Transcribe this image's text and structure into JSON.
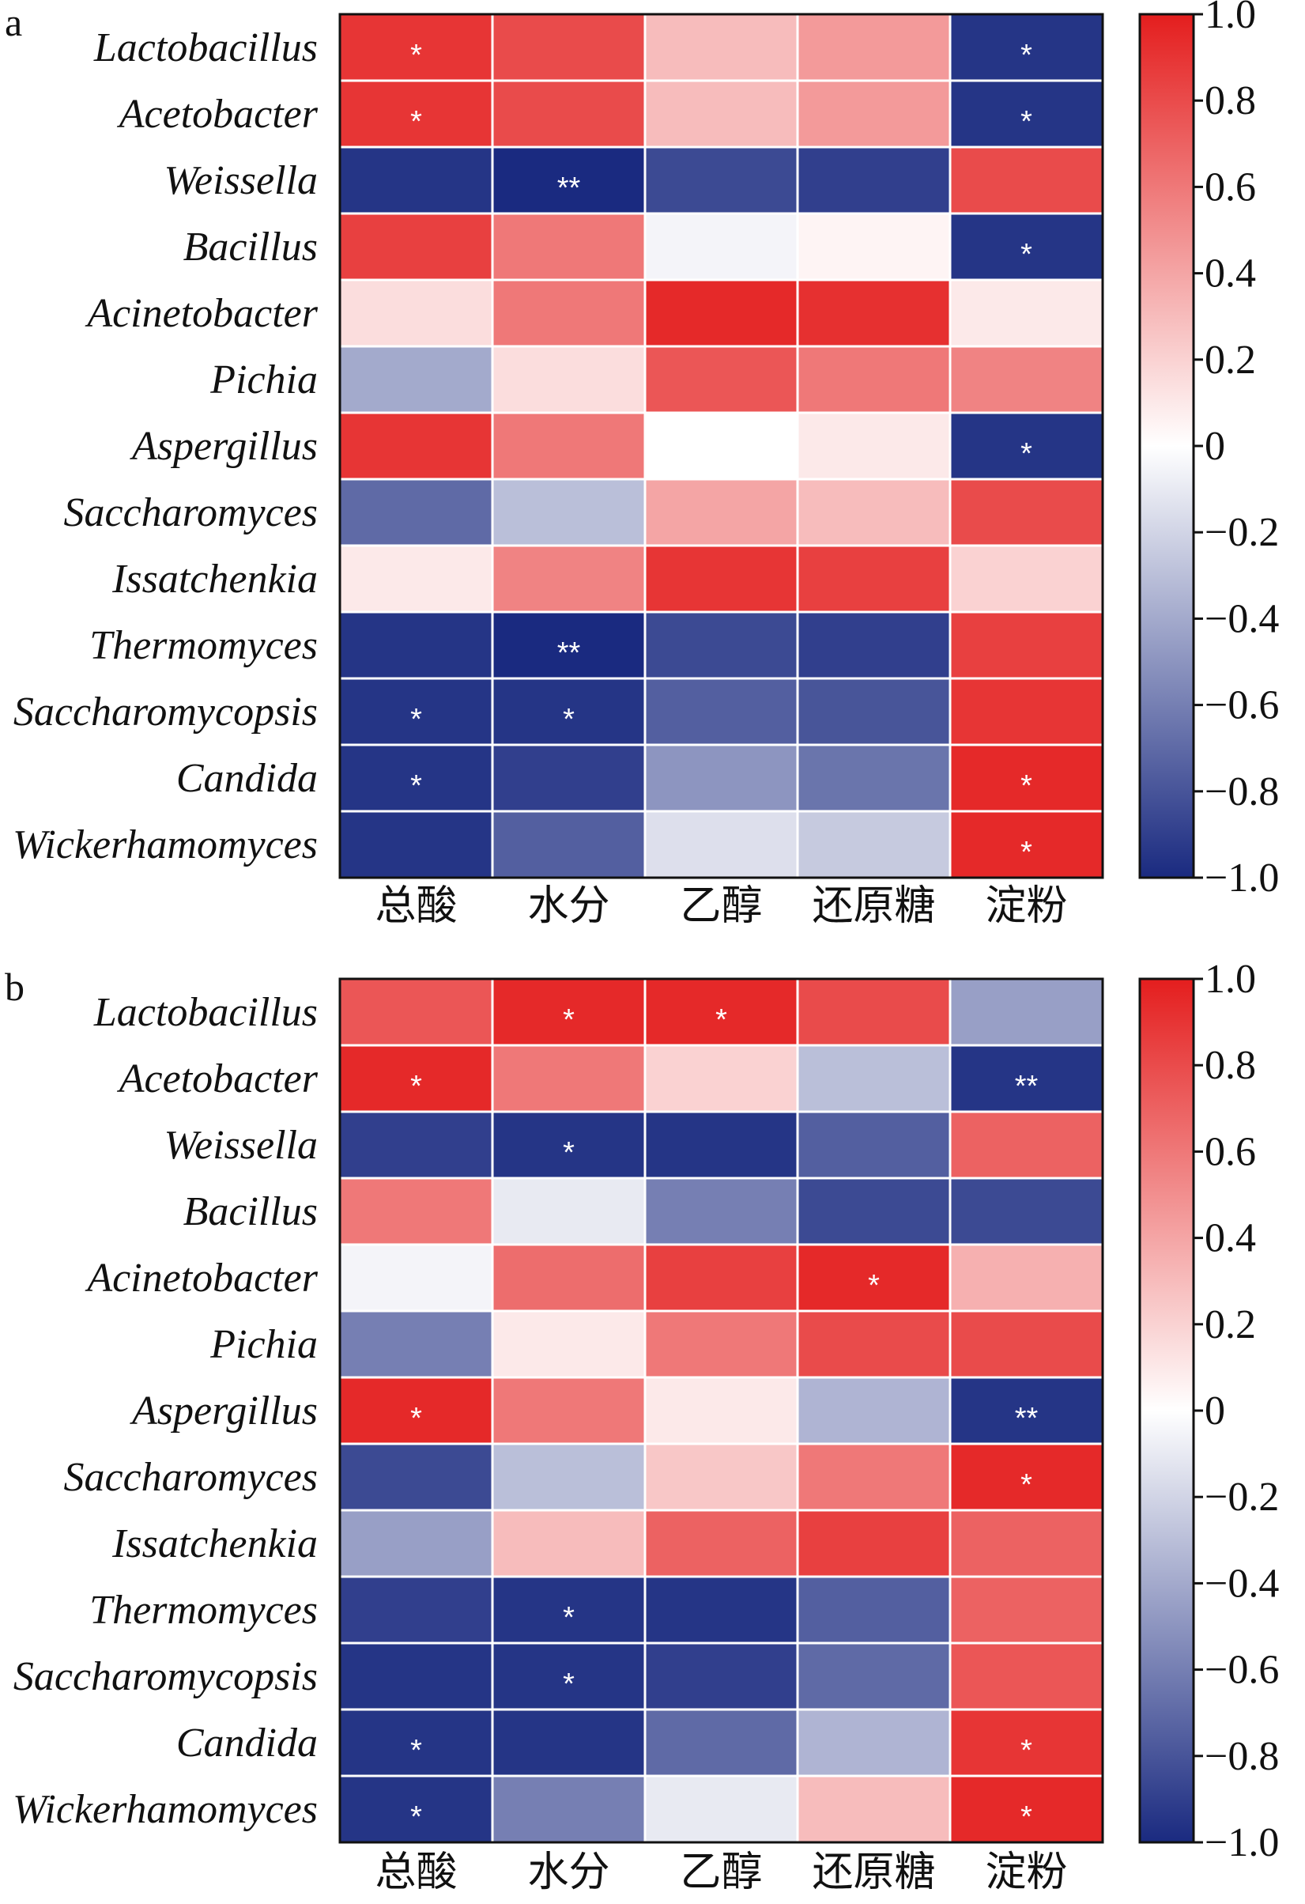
{
  "chart_data": [
    {
      "type": "heatmap",
      "panel_label": "a",
      "rows": [
        "Lactobacillus",
        "Acetobacter",
        "Weissella",
        "Bacillus",
        "Acinetobacter",
        "Pichia",
        "Aspergillus",
        "Saccharomyces",
        "Issatchenkia",
        "Thermomyces",
        "Saccharomycopsis",
        "Candida",
        "Wickerhamomyces"
      ],
      "columns": [
        "总酸",
        "水分",
        "乙醇",
        "还原糖",
        "淀粉"
      ],
      "values": [
        [
          0.9,
          0.8,
          0.3,
          0.45,
          -0.95
        ],
        [
          0.9,
          0.8,
          0.3,
          0.45,
          -0.95
        ],
        [
          -0.95,
          -1.0,
          -0.85,
          -0.9,
          0.8
        ],
        [
          0.85,
          0.6,
          -0.05,
          0.05,
          -0.95
        ],
        [
          0.15,
          0.6,
          0.95,
          0.92,
          0.1
        ],
        [
          -0.4,
          0.15,
          0.75,
          0.6,
          0.55
        ],
        [
          0.9,
          0.6,
          0.0,
          0.1,
          -0.95
        ],
        [
          -0.7,
          -0.3,
          0.4,
          0.3,
          0.8
        ],
        [
          0.1,
          0.55,
          0.9,
          0.85,
          0.2
        ],
        [
          -0.95,
          -1.0,
          -0.85,
          -0.9,
          0.85
        ],
        [
          -0.95,
          -0.95,
          -0.75,
          -0.8,
          0.9
        ],
        [
          -0.95,
          -0.9,
          -0.5,
          -0.65,
          0.95
        ],
        [
          -0.95,
          -0.75,
          -0.15,
          -0.25,
          0.95
        ]
      ],
      "significance": [
        [
          "*",
          "",
          "",
          "",
          "*"
        ],
        [
          "*",
          "",
          "",
          "",
          "*"
        ],
        [
          "",
          "**",
          "",
          "",
          ""
        ],
        [
          "",
          "",
          "",
          "",
          "*"
        ],
        [
          "",
          "",
          "",
          "",
          ""
        ],
        [
          "",
          "",
          "",
          "",
          ""
        ],
        [
          "",
          "",
          "",
          "",
          "*"
        ],
        [
          "",
          "",
          "",
          "",
          ""
        ],
        [
          "",
          "",
          "",
          "",
          ""
        ],
        [
          "",
          "**",
          "",
          "",
          ""
        ],
        [
          "*",
          "*",
          "",
          "",
          ""
        ],
        [
          "*",
          "",
          "",
          "",
          "*"
        ],
        [
          "",
          "",
          "",
          "",
          "*"
        ]
      ],
      "colorbar": {
        "min": -1.0,
        "max": 1.0,
        "ticks": [
          "1.0",
          "0.8",
          "0.6",
          "0.4",
          "0.2",
          "0",
          "−0.2",
          "−0.4",
          "−0.6",
          "−0.8",
          "−1.0"
        ]
      }
    },
    {
      "type": "heatmap",
      "panel_label": "b",
      "rows": [
        "Lactobacillus",
        "Acetobacter",
        "Weissella",
        "Bacillus",
        "Acinetobacter",
        "Pichia",
        "Aspergillus",
        "Saccharomyces",
        "Issatchenkia",
        "Thermomyces",
        "Saccharomycopsis",
        "Candida",
        "Wickerhamomyces"
      ],
      "columns": [
        "总酸",
        "水分",
        "乙醇",
        "还原糖",
        "淀粉"
      ],
      "values": [
        [
          0.75,
          0.95,
          0.95,
          0.8,
          -0.45
        ],
        [
          0.95,
          0.6,
          0.2,
          -0.3,
          -0.95
        ],
        [
          -0.9,
          -0.95,
          -0.95,
          -0.75,
          0.7
        ],
        [
          0.6,
          -0.1,
          -0.6,
          -0.85,
          -0.85
        ],
        [
          -0.05,
          0.65,
          0.85,
          0.95,
          0.35
        ],
        [
          -0.6,
          0.1,
          0.6,
          0.8,
          0.8
        ],
        [
          0.95,
          0.6,
          0.1,
          -0.35,
          -0.95
        ],
        [
          -0.85,
          -0.3,
          0.25,
          0.6,
          0.95
        ],
        [
          -0.45,
          0.3,
          0.7,
          0.85,
          0.7
        ],
        [
          -0.9,
          -0.95,
          -0.95,
          -0.75,
          0.7
        ],
        [
          -0.95,
          -0.95,
          -0.9,
          -0.7,
          0.75
        ],
        [
          -0.95,
          -0.95,
          -0.7,
          -0.35,
          0.9
        ],
        [
          -0.95,
          -0.6,
          -0.1,
          0.3,
          0.95
        ]
      ],
      "significance": [
        [
          "",
          "*",
          "*",
          "",
          ""
        ],
        [
          "*",
          "",
          "",
          "",
          "**"
        ],
        [
          "",
          "*",
          "",
          "",
          ""
        ],
        [
          "",
          "",
          "",
          "",
          ""
        ],
        [
          "",
          "",
          "",
          "*",
          ""
        ],
        [
          "",
          "",
          "",
          "",
          ""
        ],
        [
          "*",
          "",
          "",
          "",
          "**"
        ],
        [
          "",
          "",
          "",
          "",
          "*"
        ],
        [
          "",
          "",
          "",
          "",
          ""
        ],
        [
          "",
          "*",
          "",
          "",
          ""
        ],
        [
          "",
          "*",
          "",
          "",
          ""
        ],
        [
          "*",
          "",
          "",
          "",
          "*"
        ],
        [
          "*",
          "",
          "",
          "",
          "*"
        ]
      ],
      "colorbar": {
        "min": -1.0,
        "max": 1.0,
        "ticks": [
          "1.0",
          "0.8",
          "0.6",
          "0.4",
          "0.2",
          "0",
          "−0.2",
          "−0.4",
          "−0.6",
          "−0.8",
          "−1.0"
        ]
      }
    }
  ],
  "colors": {
    "positive": "#e41e1e",
    "neutral": "#ffffff",
    "negative": "#1a2a80"
  }
}
